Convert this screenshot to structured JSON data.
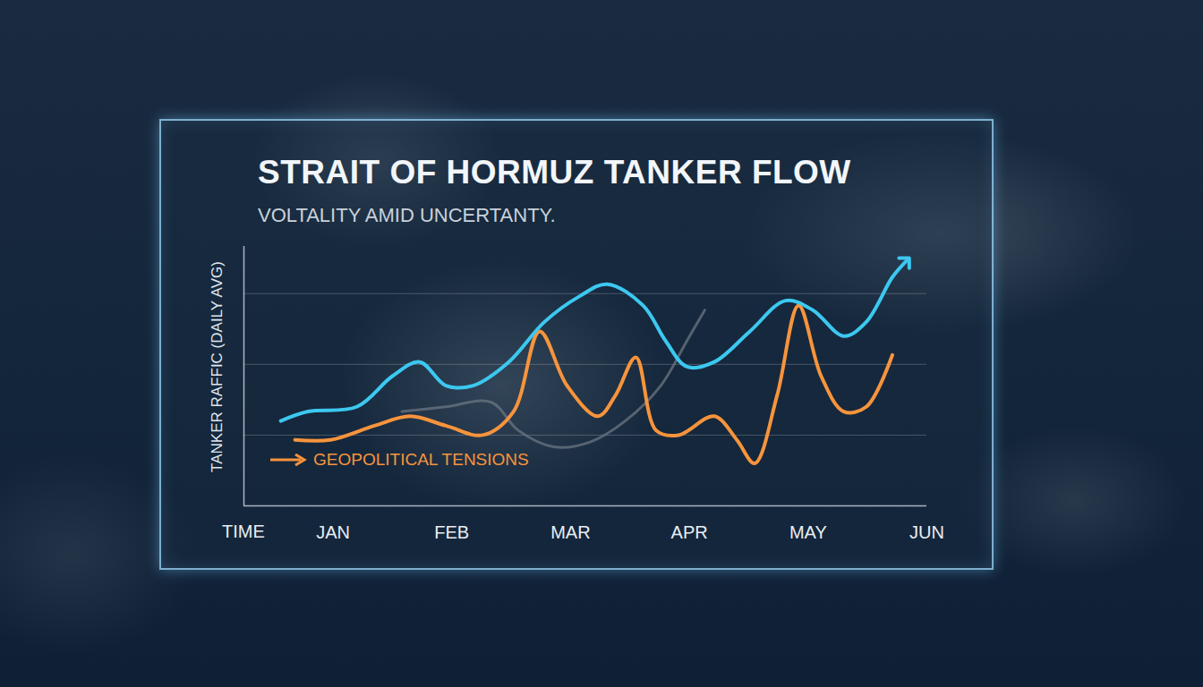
{
  "chart_data": {
    "type": "line",
    "title": "STRAIT OF HORMUZ TANKER FLOW",
    "subtitle": "VOLTALITY AMID UNCERTANTY.",
    "x_label": "TIME",
    "y_label": "TANKER RAFFIC (DAILY AVG)",
    "xlim": [
      0.25,
      6
    ],
    "xticks": [
      {
        "value": 1,
        "label": "JAN"
      },
      {
        "value": 2,
        "label": "FEB"
      },
      {
        "value": 3,
        "label": "MAR"
      },
      {
        "value": 4,
        "label": "APR"
      },
      {
        "value": 5,
        "label": "MAY"
      },
      {
        "value": 6,
        "label": "JUN"
      }
    ],
    "ylim": [
      0,
      110
    ],
    "yticks": [
      30,
      60,
      90
    ],
    "grid": true,
    "tick_labels": "x",
    "legend": "bottom-left",
    "series": [
      {
        "color": "#6b7682",
        "x": [
          1.58,
          1.95,
          2.33,
          2.56,
          2.86,
          3.16,
          3.46,
          3.76,
          3.98,
          4.13
        ],
        "values": [
          40,
          42,
          44,
          32,
          25,
          27,
          36,
          51,
          70,
          83
        ]
      },
      {
        "name": "GEOPOLITICAL TENSIONS",
        "color": "#f7943c",
        "x": [
          0.68,
          0.98,
          1.35,
          1.65,
          1.95,
          2.26,
          2.52,
          2.74,
          2.97,
          3.23,
          3.38,
          3.55,
          3.72,
          3.91,
          4.21,
          4.4,
          4.55,
          4.74,
          4.92,
          5.11,
          5.3,
          5.49,
          5.71
        ],
        "values": [
          28,
          28,
          34,
          38,
          34,
          30,
          40,
          74,
          51,
          38,
          47,
          63,
          32,
          30,
          38,
          28,
          18,
          47,
          85,
          55,
          40,
          42,
          64
        ]
      },
      {
        "color": "#3cc8f0",
        "marker": "arrow",
        "x": [
          0.56,
          0.79,
          1.2,
          1.5,
          1.73,
          1.95,
          2.18,
          2.48,
          2.78,
          3.08,
          3.31,
          3.61,
          3.8,
          3.98,
          4.21,
          4.51,
          4.81,
          5.04,
          5.3,
          5.49,
          5.71,
          5.83
        ],
        "values": [
          36,
          40,
          42,
          55,
          61,
          51,
          51,
          61,
          78,
          89,
          94,
          85,
          70,
          59,
          61,
          74,
          87,
          83,
          72,
          78,
          97,
          104
        ]
      }
    ]
  }
}
